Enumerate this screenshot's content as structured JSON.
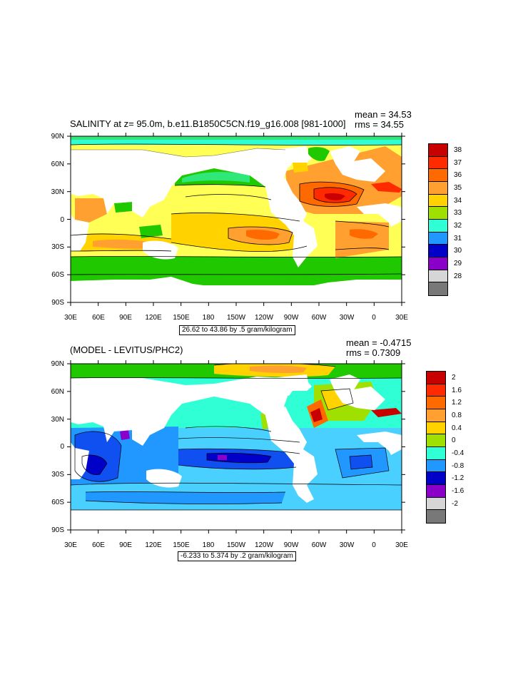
{
  "panel1": {
    "title": "SALINITY at z=  95.0m, b.e11.B1850C5CN.f19_g16.008 [981-1000]",
    "mean": "mean = 34.53",
    "rms": "rms = 34.55",
    "range": "26.62 to 43.86 by .5 gram/kilogram",
    "x_ticks": [
      "30E",
      "60E",
      "90E",
      "120E",
      "150E",
      "180",
      "150W",
      "120W",
      "90W",
      "60W",
      "30W",
      "0",
      "30E"
    ],
    "y_ticks": [
      "90N",
      "60N",
      "30N",
      "0",
      "30S",
      "60S",
      "90S"
    ],
    "colorbar_labels": [
      "38",
      "37",
      "36",
      "35",
      "34",
      "33",
      "32",
      "31",
      "30",
      "29",
      "28"
    ],
    "colors": [
      "#c80000",
      "#ff2a00",
      "#ff6a00",
      "#ffa030",
      "#ffd200",
      "#ffff55",
      "#a0e000",
      "#20c800",
      "#30e87a",
      "#30ffd6",
      "#4ad0ff",
      "#2098ff",
      "#1050f0",
      "#0000c8",
      "#8a00c8",
      "#ff20ff",
      "#d6d6d6",
      "#787878"
    ]
  },
  "panel2": {
    "title": "(MODEL - LEVITUS/PHC2)",
    "mean": "mean = -0.4715",
    "rms": "rms = 0.7309",
    "range": "-6.233 to 5.374 by .2 gram/kilogram",
    "x_ticks": [
      "30E",
      "60E",
      "90E",
      "120E",
      "150E",
      "180",
      "150W",
      "120W",
      "90W",
      "60W",
      "30W",
      "0",
      "30E"
    ],
    "y_ticks": [
      "90N",
      "60N",
      "30N",
      "0",
      "30S",
      "60S",
      "90S"
    ],
    "colorbar_labels": [
      "2",
      "1.6",
      "1.2",
      "0.8",
      "0.4",
      "0",
      "-0.4",
      "-0.8",
      "-1.2",
      "-1.6",
      "-2"
    ],
    "colors": [
      "#c80000",
      "#ff2a00",
      "#ff6a00",
      "#ffa030",
      "#ffd200",
      "#ffff55",
      "#a0e000",
      "#20c800",
      "#30e87a",
      "#30ffd6",
      "#4ad0ff",
      "#2098ff",
      "#1050f0",
      "#0000c8",
      "#8a00c8",
      "#ff20ff",
      "#d6d6d6",
      "#787878"
    ]
  }
}
